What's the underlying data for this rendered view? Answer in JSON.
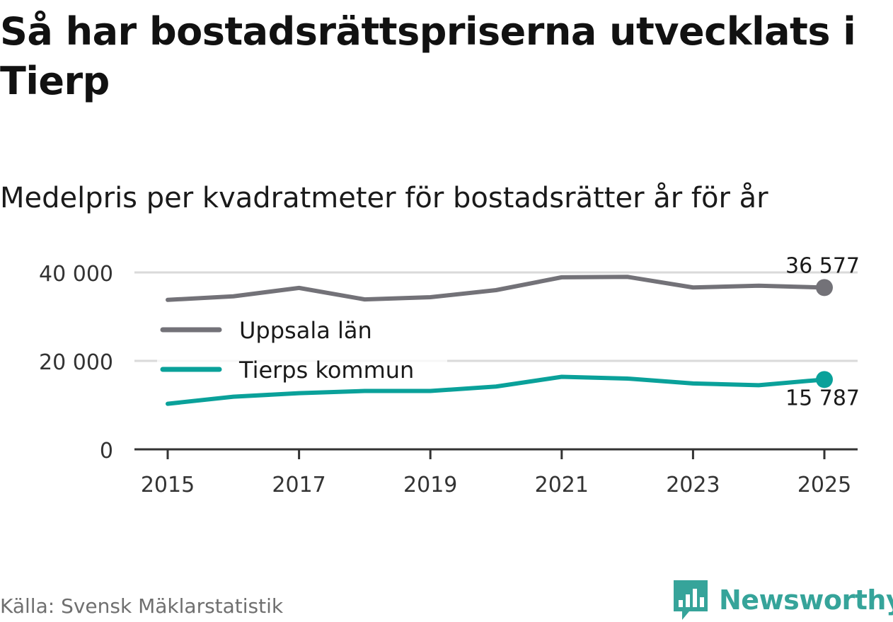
{
  "title": "Så har bostadsrättspriserna utvecklats i Tierp",
  "subtitle": "Medelpris per kvadratmeter för bostadsrätter år för år",
  "source": "Källa: Svensk Mäklarstatistik",
  "brand": {
    "name": "Newsworthy",
    "logo_icon": "bar-chart-speech-bubble-icon",
    "color": "#36a49a"
  },
  "chart_data": {
    "type": "line",
    "x": [
      2015,
      2016,
      2017,
      2018,
      2019,
      2020,
      2021,
      2022,
      2023,
      2024,
      2025
    ],
    "x_tick_labels": [
      "2015",
      "2017",
      "2019",
      "2021",
      "2023",
      "2025"
    ],
    "x_ticks": [
      2015,
      2017,
      2019,
      2021,
      2023,
      2025
    ],
    "y_tick_labels": [
      "0",
      "20 000",
      "40 000"
    ],
    "y_ticks": [
      0,
      20000,
      40000
    ],
    "ylim": [
      0,
      40000
    ],
    "grid": true,
    "legend_position": "center-left",
    "series": [
      {
        "name": "Uppsala län",
        "color": "#737278",
        "values": [
          33800,
          34600,
          36500,
          33900,
          34400,
          36000,
          38900,
          39000,
          36600,
          37000,
          36577
        ],
        "end_label": "36 577"
      },
      {
        "name": "Tierps kommun",
        "color": "#0aa19a",
        "values": [
          10300,
          11900,
          12700,
          13200,
          13200,
          14200,
          16400,
          16000,
          14900,
          14500,
          15787
        ],
        "end_label": "15 787"
      }
    ]
  }
}
